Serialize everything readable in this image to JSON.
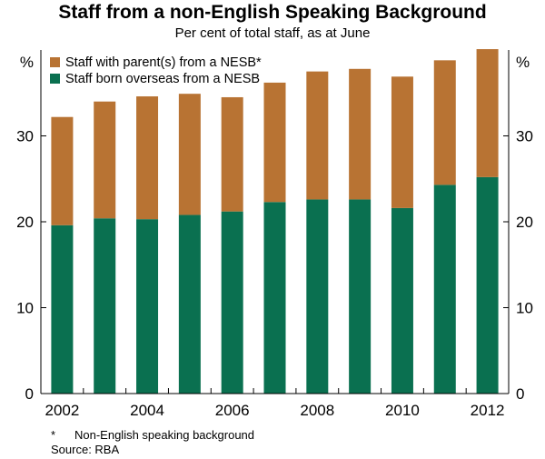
{
  "title": "Staff from a non-English Speaking Background",
  "subtitle": "Per cent of total staff, as at June",
  "footnote": {
    "marker": "*",
    "text": "Non-English speaking background",
    "source": "Source: RBA"
  },
  "colors": {
    "parents": "#b87333",
    "born_overseas": "#0a7050",
    "axis": "#000000"
  },
  "chart_data": {
    "type": "bar",
    "stacked": true,
    "unit_left": "%",
    "unit_right": "%",
    "x": [
      2002,
      2003,
      2004,
      2005,
      2006,
      2007,
      2008,
      2009,
      2010,
      2011,
      2012
    ],
    "x_tick_labels": [
      "2002",
      "",
      "2004",
      "",
      "2006",
      "",
      "2008",
      "",
      "2010",
      "",
      "2012"
    ],
    "ylim": [
      0,
      40
    ],
    "y_ticks": [
      0,
      10,
      20,
      30
    ],
    "grid": false,
    "legend_position": "top-left",
    "series": [
      {
        "name": "Staff born overseas from a NESB",
        "color_key": "born_overseas",
        "values": [
          19.6,
          20.4,
          20.3,
          20.8,
          21.2,
          22.3,
          22.6,
          22.6,
          21.6,
          24.3,
          25.2
        ]
      },
      {
        "name": "Staff with parent(s) from a NESB*",
        "color_key": "parents",
        "values": [
          12.6,
          13.6,
          14.3,
          14.1,
          13.3,
          13.9,
          14.9,
          15.2,
          15.3,
          14.5,
          14.9
        ]
      }
    ],
    "legend_order": [
      1,
      0
    ]
  }
}
